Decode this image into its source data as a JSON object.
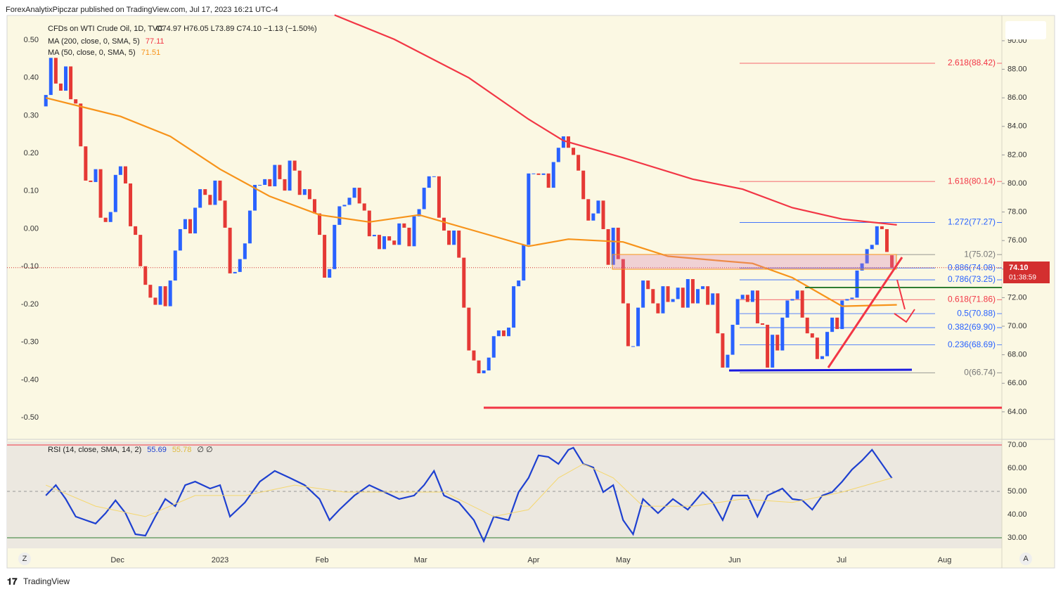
{
  "header": {
    "published": "ForexAnalytixPipczar published on TradingView.com, Jul 17, 2023 16:21 UTC-4",
    "symbol": "CFDs on WTI Crude Oil, 1D, TVC",
    "ohlc": "O74.97 H76.05 L73.89 C74.10 −1.13 (−1.50%)",
    "price_tag": "74.10",
    "countdown": "01:38:59",
    "footer": "TradingView",
    "left_button": "Z",
    "right_button": "A"
  },
  "chart_data": [
    {
      "type": "candlestick",
      "up_color": "#2962ff",
      "down_color": "#e53935",
      "open": [
        85.4,
        86.2,
        88.8,
        87.0,
        86.5,
        88.2,
        85.9,
        85.6,
        82.6,
        80.2,
        80.1,
        81.0,
        77.6,
        77.3,
        78.0,
        80.6,
        81.2,
        80.0,
        77.0,
        76.4,
        74.2,
        72.9,
        72.0,
        71.5,
        72.8,
        71.4,
        73.2,
        75.3,
        76.8,
        77.5,
        76.5,
        78.3,
        79.6,
        79.2,
        78.5,
        80.2,
        78.8,
        76.9,
        73.7,
        73.8,
        74.7,
        75.8,
        78.1,
        79.9,
        79.9,
        80.3,
        79.8,
        81.3,
        80.3,
        79.5,
        81.6,
        80.9,
        79.2,
        79.6,
        78.9,
        77.9,
        76.4,
        73.4,
        74.0,
        77.1,
        78.4,
        78.5,
        79.0,
        79.7,
        78.6,
        78.1,
        76.3,
        76.4,
        75.4,
        76.3,
        76.0,
        75.7,
        77.2,
        76.9,
        75.6,
        77.7,
        78.2,
        79.7,
        80.5,
        80.5,
        77.6,
        76.7,
        75.7,
        76.7,
        74.8,
        71.3,
        68.3,
        67.6,
        66.7,
        66.9,
        67.8,
        69.3,
        69.7,
        69.3,
        69.9,
        72.8,
        73.2,
        75.7,
        80.7,
        80.7,
        80.6,
        80.7,
        79.7,
        81.5,
        82.5,
        83.3,
        82.5,
        82.0,
        80.9,
        78.9,
        77.4,
        77.9,
        78.8,
        76.8,
        74.3,
        76.9,
        74.7,
        71.6,
        68.6,
        68.6,
        71.3,
        73.2,
        72.6,
        71.6,
        70.9,
        72.8,
        71.7,
        71.9,
        72.7,
        71.3,
        73.3,
        71.6,
        72.6,
        72.8,
        71.5,
        72.3,
        69.5,
        67.1,
        68.0,
        70.1,
        71.9,
        72.2,
        71.7,
        72.5,
        70.2,
        70.1,
        67.1,
        69.4,
        68.3,
        70.6,
        71.8,
        71.9,
        72.5,
        70.6,
        69.5,
        69.2,
        67.7,
        67.9,
        69.6,
        70.6,
        69.8,
        71.8,
        71.9,
        72.0,
        73.9,
        74.4,
        75.4,
        75.7,
        77.0,
        76.8,
        74.97
      ],
      "close": [
        86.2,
        88.8,
        87.0,
        86.5,
        88.2,
        85.9,
        85.6,
        82.6,
        80.2,
        80.1,
        81.0,
        77.6,
        77.3,
        78.0,
        80.6,
        81.2,
        80.0,
        77.0,
        76.4,
        74.2,
        72.9,
        72.0,
        71.5,
        72.8,
        71.4,
        73.2,
        75.3,
        76.8,
        77.5,
        76.5,
        78.3,
        79.6,
        79.2,
        78.5,
        80.2,
        78.8,
        76.9,
        73.7,
        73.8,
        74.7,
        75.8,
        78.1,
        79.9,
        79.9,
        80.3,
        79.8,
        81.3,
        80.3,
        79.5,
        81.6,
        80.9,
        79.2,
        79.6,
        78.9,
        77.9,
        76.4,
        73.4,
        74.0,
        77.1,
        78.4,
        78.5,
        79.0,
        79.7,
        78.6,
        78.1,
        76.3,
        76.4,
        75.4,
        76.3,
        76.0,
        75.7,
        77.2,
        76.9,
        75.6,
        77.7,
        78.2,
        79.7,
        80.5,
        80.5,
        77.6,
        76.7,
        75.7,
        76.7,
        74.8,
        71.3,
        68.3,
        67.6,
        66.7,
        66.9,
        67.8,
        69.3,
        69.7,
        69.3,
        69.9,
        72.8,
        73.2,
        75.7,
        80.7,
        80.7,
        80.6,
        80.7,
        79.7,
        81.5,
        82.5,
        83.3,
        82.5,
        82.0,
        80.9,
        78.9,
        77.4,
        77.9,
        78.8,
        76.8,
        74.3,
        76.9,
        74.7,
        71.6,
        68.6,
        68.6,
        71.3,
        73.2,
        72.6,
        71.6,
        70.9,
        72.8,
        71.7,
        71.9,
        72.7,
        71.3,
        73.3,
        71.6,
        72.6,
        72.8,
        71.5,
        72.3,
        69.5,
        67.1,
        68.0,
        70.1,
        71.9,
        72.2,
        71.7,
        72.5,
        70.2,
        70.1,
        67.1,
        69.4,
        68.3,
        70.6,
        71.8,
        71.9,
        72.5,
        70.6,
        69.5,
        69.2,
        67.7,
        67.9,
        69.6,
        70.6,
        69.8,
        71.8,
        71.9,
        72.0,
        73.9,
        74.4,
        75.4,
        75.7,
        77.0,
        76.8,
        75.2,
        74.1
      ],
      "lines": [
        {
          "name": "MA (200, close, 0, SMA, 5)",
          "last": 77.11,
          "color": "#f23645",
          "x": [
            58,
            70,
            85,
            97,
            104,
            116,
            130,
            140,
            150,
            160,
            171
          ],
          "values": [
            91.8,
            90.1,
            87.4,
            84.5,
            83.0,
            81.8,
            80.3,
            79.6,
            78.3,
            77.5,
            77.1
          ]
        },
        {
          "name": "MA (50, close, 0, SMA, 5)",
          "last": 71.51,
          "color": "#f7931a",
          "x": [
            0,
            15,
            25,
            35,
            45,
            55,
            65,
            75,
            85,
            97,
            105,
            116,
            125,
            135,
            142,
            150,
            160,
            171
          ],
          "values": [
            86.0,
            84.7,
            83.3,
            81.0,
            79.1,
            77.8,
            77.3,
            77.8,
            76.8,
            75.6,
            76.1,
            75.9,
            74.9,
            74.6,
            74.4,
            73.4,
            71.4,
            71.5
          ]
        }
      ],
      "fib_levels": [
        {
          "label": "2.618(88.42)",
          "value": 88.42,
          "color": "#f23645"
        },
        {
          "label": "1.618(80.14)",
          "value": 80.14,
          "color": "#f23645"
        },
        {
          "label": "1.272(77.27)",
          "value": 77.27,
          "color": "#2962ff"
        },
        {
          "label": "1(75.02)",
          "value": 75.02,
          "color": "#777777"
        },
        {
          "label": "0.886(74.08)",
          "value": 74.08,
          "color": "#2962ff"
        },
        {
          "label": "0.786(73.25)",
          "value": 73.25,
          "color": "#2962ff"
        },
        {
          "label": "0.618(71.86)",
          "value": 71.86,
          "color": "#f23645"
        },
        {
          "label": "0.5(70.88)",
          "value": 70.88,
          "color": "#2962ff"
        },
        {
          "label": "0.382(69.90)",
          "value": 69.9,
          "color": "#2962ff"
        },
        {
          "label": "0.236(68.69)",
          "value": 68.69,
          "color": "#2962ff"
        },
        {
          "label": "0(66.74)",
          "value": 66.74,
          "color": "#777777"
        }
      ],
      "xlim": [
        -7.8,
        192.1
      ],
      "xticks": [
        {
          "value": 14.4,
          "label": "Dec"
        },
        {
          "value": 35,
          "label": "2023"
        },
        {
          "value": 55.5,
          "label": "Feb"
        },
        {
          "value": 75.3,
          "label": "Mar"
        },
        {
          "value": 98,
          "label": "Apr"
        },
        {
          "value": 116,
          "label": "May"
        },
        {
          "value": 138.4,
          "label": "Jun"
        },
        {
          "value": 159.9,
          "label": "Jul"
        },
        {
          "value": 180.6,
          "label": "Aug"
        }
      ],
      "ylim": [
        62.22,
        91.77
      ],
      "yticks": [
        {
          "value": 64,
          "label": "64.00"
        },
        {
          "value": 66,
          "label": "66.00"
        },
        {
          "value": 68,
          "label": "68.00"
        },
        {
          "value": 70,
          "label": "70.00"
        },
        {
          "value": 72,
          "label": "72.00"
        },
        {
          "value": 74,
          "label": "74.00"
        },
        {
          "value": 76,
          "label": "76.00"
        },
        {
          "value": 78,
          "label": "78.00"
        },
        {
          "value": 80,
          "label": "80.00"
        },
        {
          "value": 82,
          "label": "82.00"
        },
        {
          "value": 84,
          "label": "84.00"
        },
        {
          "value": 86,
          "label": "86.00"
        },
        {
          "value": 88,
          "label": "88.00"
        },
        {
          "value": 90,
          "label": "90.00"
        }
      ],
      "y2lim": [
        -0.552,
        0.565
      ],
      "y2ticks": [
        {
          "value": 0.5,
          "label": "0.50"
        },
        {
          "value": 0.4,
          "label": "0.40"
        },
        {
          "value": 0.3,
          "label": "0.30"
        },
        {
          "value": 0.2,
          "label": "0.20"
        },
        {
          "value": 0.1,
          "label": "0.10"
        },
        {
          "value": 0,
          "label": "0.00"
        },
        {
          "value": -0.1,
          "label": "-0.10"
        },
        {
          "value": -0.2,
          "label": "-0.20"
        },
        {
          "value": -0.3,
          "label": "-0.30"
        },
        {
          "value": -0.4,
          "label": "-0.40"
        },
        {
          "value": -0.5,
          "label": "-0.50"
        }
      ]
    },
    {
      "type": "line",
      "title": "RSI (14, close, SMA, 14, 2)",
      "extra": "∅ ∅",
      "series": [
        {
          "name": "RSI",
          "last": 55.69,
          "color": "#1e40d0",
          "x": [
            0,
            2,
            4,
            6,
            8,
            10,
            12,
            14,
            16,
            18,
            20,
            22,
            24,
            26,
            28,
            30,
            33,
            35,
            37,
            40,
            43,
            46,
            49,
            52,
            55,
            57,
            59,
            62,
            65,
            68,
            71,
            74,
            76,
            78,
            80,
            83,
            86,
            88,
            90,
            93,
            95,
            97,
            99,
            101,
            103,
            105,
            106,
            108,
            110,
            112,
            114,
            116,
            118,
            120,
            123,
            126,
            129,
            132,
            134,
            136,
            138,
            141,
            143,
            145,
            148,
            150,
            152,
            154,
            156,
            158,
            160,
            162,
            164,
            166,
            168,
            170
          ],
          "values": [
            48.2,
            52.7,
            46.7,
            39.1,
            37.6,
            36.1,
            40.6,
            46.1,
            40.6,
            31.5,
            30.9,
            39.1,
            46.7,
            43.6,
            52.7,
            54.2,
            51.2,
            52.7,
            39.1,
            45.2,
            54.2,
            58.8,
            55.8,
            52.7,
            46.7,
            37.6,
            42.1,
            48.2,
            52.7,
            49.7,
            46.7,
            48.2,
            52.7,
            58.8,
            48.2,
            45.2,
            37.6,
            28.5,
            39.1,
            37.6,
            49.7,
            55.8,
            65.5,
            64.8,
            61.8,
            67.9,
            68.8,
            61.8,
            60.3,
            49.7,
            52.7,
            37.6,
            31.5,
            46.7,
            40.6,
            46.7,
            42.1,
            49.7,
            45.2,
            37.6,
            48.2,
            48.2,
            39.1,
            48.2,
            51.2,
            46.7,
            46.1,
            42.1,
            48.2,
            49.7,
            54.2,
            59.4,
            63.3,
            67.9,
            61.8,
            55.69
          ]
        },
        {
          "name": "RSI MA",
          "last": 55.78,
          "color": "#f5d76e",
          "x": [
            0,
            10,
            20,
            30,
            40,
            50,
            60,
            70,
            80,
            90,
            97,
            103,
            108,
            114,
            120,
            130,
            140,
            150,
            160,
            170
          ],
          "values": [
            52.7,
            43.6,
            39.1,
            48.2,
            48.2,
            52.7,
            49.7,
            49.7,
            49.7,
            39.1,
            42.1,
            55.8,
            61.8,
            55.8,
            43.6,
            43.6,
            46.7,
            45.2,
            49.7,
            55.78
          ]
        }
      ],
      "ylim": [
        25.45,
        71.5
      ],
      "yticks": [
        {
          "value": 30,
          "label": "30.00"
        },
        {
          "value": 40,
          "label": "40.00"
        },
        {
          "value": 50,
          "label": "50.00"
        },
        {
          "value": 60,
          "label": "60.00"
        },
        {
          "value": 70,
          "label": "70.00"
        }
      ]
    }
  ]
}
